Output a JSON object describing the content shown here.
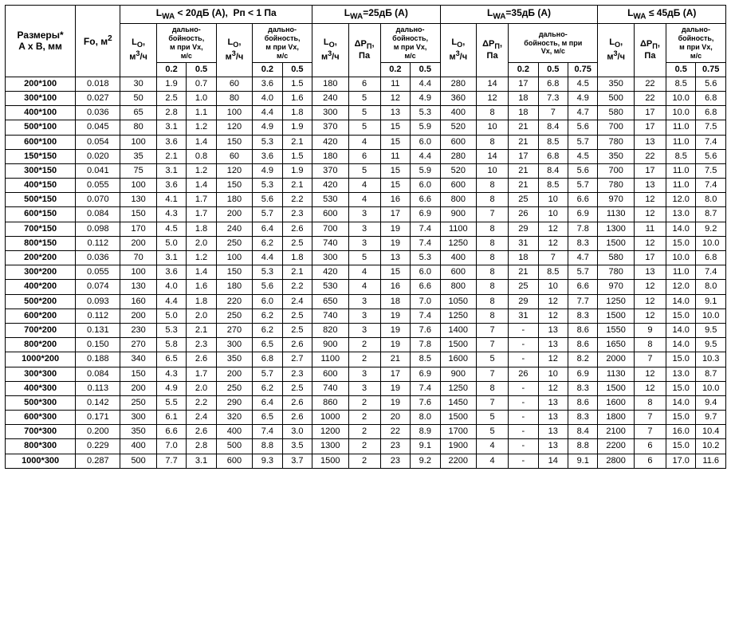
{
  "headers": {
    "dim": "Размеры*\nA x B, мм",
    "fo": "Fo, м<sup>2</sup>",
    "group_lt20": "L<sub>WA</sub> &lt; 20дБ (A),&nbsp;&nbsp;Pп &lt; 1 Па",
    "group_25": "L<sub>WA</sub>=25дБ (A)",
    "group_35": "L<sub>WA</sub>=35дБ (A)",
    "group_le45": "L<sub>WA</sub> ≤ 45дБ (A)",
    "lo": "L<sub>O</sub>,<br>м<sup>3</sup>/ч",
    "dp": "ΔP<sub>П</sub>,<br>Па",
    "range": "дально-<br>бойность,<br>м при Vx,<br>м/с",
    "range35": "дально-<br>бойность, м при<br>Vx, м/с",
    "v02": "0.2",
    "v05": "0.5",
    "v075": "0.75"
  },
  "rows": [
    {
      "dim": "200*100",
      "fo": "0.018",
      "a": {
        "lo": "30",
        "r02": "1.9",
        "r05": "0.7"
      },
      "b": {
        "lo": "60",
        "r02": "3.6",
        "r05": "1.5"
      },
      "c": {
        "lo": "180",
        "dp": "6",
        "r02": "11",
        "r05": "4.4"
      },
      "d": {
        "lo": "280",
        "dp": "14",
        "r02": "17",
        "r05": "6.8",
        "r075": "4.5"
      },
      "e": {
        "lo": "350",
        "dp": "22",
        "r05": "8.5",
        "r075": "5.6"
      }
    },
    {
      "dim": "300*100",
      "fo": "0.027",
      "a": {
        "lo": "50",
        "r02": "2.5",
        "r05": "1.0"
      },
      "b": {
        "lo": "80",
        "r02": "4.0",
        "r05": "1.6"
      },
      "c": {
        "lo": "240",
        "dp": "5",
        "r02": "12",
        "r05": "4.9"
      },
      "d": {
        "lo": "360",
        "dp": "12",
        "r02": "18",
        "r05": "7.3",
        "r075": "4.9"
      },
      "e": {
        "lo": "500",
        "dp": "22",
        "r05": "10.0",
        "r075": "6.8"
      }
    },
    {
      "dim": "400*100",
      "fo": "0.036",
      "a": {
        "lo": "65",
        "r02": "2.8",
        "r05": "1.1"
      },
      "b": {
        "lo": "100",
        "r02": "4.4",
        "r05": "1.8"
      },
      "c": {
        "lo": "300",
        "dp": "5",
        "r02": "13",
        "r05": "5.3"
      },
      "d": {
        "lo": "400",
        "dp": "8",
        "r02": "18",
        "r05": "7",
        "r075": "4.7"
      },
      "e": {
        "lo": "580",
        "dp": "17",
        "r05": "10.0",
        "r075": "6.8"
      }
    },
    {
      "dim": "500*100",
      "fo": "0.045",
      "a": {
        "lo": "80",
        "r02": "3.1",
        "r05": "1.2"
      },
      "b": {
        "lo": "120",
        "r02": "4.9",
        "r05": "1.9"
      },
      "c": {
        "lo": "370",
        "dp": "5",
        "r02": "15",
        "r05": "5.9"
      },
      "d": {
        "lo": "520",
        "dp": "10",
        "r02": "21",
        "r05": "8.4",
        "r075": "5.6"
      },
      "e": {
        "lo": "700",
        "dp": "17",
        "r05": "11.0",
        "r075": "7.5"
      }
    },
    {
      "dim": "600*100",
      "fo": "0.054",
      "a": {
        "lo": "100",
        "r02": "3.6",
        "r05": "1.4"
      },
      "b": {
        "lo": "150",
        "r02": "5.3",
        "r05": "2.1"
      },
      "c": {
        "lo": "420",
        "dp": "4",
        "r02": "15",
        "r05": "6.0"
      },
      "d": {
        "lo": "600",
        "dp": "8",
        "r02": "21",
        "r05": "8.5",
        "r075": "5.7"
      },
      "e": {
        "lo": "780",
        "dp": "13",
        "r05": "11.0",
        "r075": "7.4"
      }
    },
    {
      "dim": "150*150",
      "fo": "0.020",
      "a": {
        "lo": "35",
        "r02": "2.1",
        "r05": "0.8"
      },
      "b": {
        "lo": "60",
        "r02": "3.6",
        "r05": "1.5"
      },
      "c": {
        "lo": "180",
        "dp": "6",
        "r02": "11",
        "r05": "4.4"
      },
      "d": {
        "lo": "280",
        "dp": "14",
        "r02": "17",
        "r05": "6.8",
        "r075": "4.5"
      },
      "e": {
        "lo": "350",
        "dp": "22",
        "r05": "8.5",
        "r075": "5.6"
      }
    },
    {
      "dim": "300*150",
      "fo": "0.041",
      "a": {
        "lo": "75",
        "r02": "3.1",
        "r05": "1.2"
      },
      "b": {
        "lo": "120",
        "r02": "4.9",
        "r05": "1.9"
      },
      "c": {
        "lo": "370",
        "dp": "5",
        "r02": "15",
        "r05": "5.9"
      },
      "d": {
        "lo": "520",
        "dp": "10",
        "r02": "21",
        "r05": "8.4",
        "r075": "5.6"
      },
      "e": {
        "lo": "700",
        "dp": "17",
        "r05": "11.0",
        "r075": "7.5"
      }
    },
    {
      "dim": "400*150",
      "fo": "0.055",
      "a": {
        "lo": "100",
        "r02": "3.6",
        "r05": "1.4"
      },
      "b": {
        "lo": "150",
        "r02": "5.3",
        "r05": "2.1"
      },
      "c": {
        "lo": "420",
        "dp": "4",
        "r02": "15",
        "r05": "6.0"
      },
      "d": {
        "lo": "600",
        "dp": "8",
        "r02": "21",
        "r05": "8.5",
        "r075": "5.7"
      },
      "e": {
        "lo": "780",
        "dp": "13",
        "r05": "11.0",
        "r075": "7.4"
      }
    },
    {
      "dim": "500*150",
      "fo": "0.070",
      "a": {
        "lo": "130",
        "r02": "4.1",
        "r05": "1.7"
      },
      "b": {
        "lo": "180",
        "r02": "5.6",
        "r05": "2.2"
      },
      "c": {
        "lo": "530",
        "dp": "4",
        "r02": "16",
        "r05": "6.6"
      },
      "d": {
        "lo": "800",
        "dp": "8",
        "r02": "25",
        "r05": "10",
        "r075": "6.6"
      },
      "e": {
        "lo": "970",
        "dp": "12",
        "r05": "12.0",
        "r075": "8.0"
      }
    },
    {
      "dim": "600*150",
      "fo": "0.084",
      "a": {
        "lo": "150",
        "r02": "4.3",
        "r05": "1.7"
      },
      "b": {
        "lo": "200",
        "r02": "5.7",
        "r05": "2.3"
      },
      "c": {
        "lo": "600",
        "dp": "3",
        "r02": "17",
        "r05": "6.9"
      },
      "d": {
        "lo": "900",
        "dp": "7",
        "r02": "26",
        "r05": "10",
        "r075": "6.9"
      },
      "e": {
        "lo": "1130",
        "dp": "12",
        "r05": "13.0",
        "r075": "8.7"
      }
    },
    {
      "dim": "700*150",
      "fo": "0.098",
      "a": {
        "lo": "170",
        "r02": "4.5",
        "r05": "1.8"
      },
      "b": {
        "lo": "240",
        "r02": "6.4",
        "r05": "2.6"
      },
      "c": {
        "lo": "700",
        "dp": "3",
        "r02": "19",
        "r05": "7.4"
      },
      "d": {
        "lo": "1100",
        "dp": "8",
        "r02": "29",
        "r05": "12",
        "r075": "7.8"
      },
      "e": {
        "lo": "1300",
        "dp": "11",
        "r05": "14.0",
        "r075": "9.2"
      }
    },
    {
      "dim": "800*150",
      "fo": "0.112",
      "a": {
        "lo": "200",
        "r02": "5.0",
        "r05": "2.0"
      },
      "b": {
        "lo": "250",
        "r02": "6.2",
        "r05": "2.5"
      },
      "c": {
        "lo": "740",
        "dp": "3",
        "r02": "19",
        "r05": "7.4"
      },
      "d": {
        "lo": "1250",
        "dp": "8",
        "r02": "31",
        "r05": "12",
        "r075": "8.3"
      },
      "e": {
        "lo": "1500",
        "dp": "12",
        "r05": "15.0",
        "r075": "10.0"
      }
    },
    {
      "dim": "200*200",
      "fo": "0.036",
      "a": {
        "lo": "70",
        "r02": "3.1",
        "r05": "1.2"
      },
      "b": {
        "lo": "100",
        "r02": "4.4",
        "r05": "1.8"
      },
      "c": {
        "lo": "300",
        "dp": "5",
        "r02": "13",
        "r05": "5.3"
      },
      "d": {
        "lo": "400",
        "dp": "8",
        "r02": "18",
        "r05": "7",
        "r075": "4.7"
      },
      "e": {
        "lo": "580",
        "dp": "17",
        "r05": "10.0",
        "r075": "6.8"
      }
    },
    {
      "dim": "300*200",
      "fo": "0.055",
      "a": {
        "lo": "100",
        "r02": "3.6",
        "r05": "1.4"
      },
      "b": {
        "lo": "150",
        "r02": "5.3",
        "r05": "2.1"
      },
      "c": {
        "lo": "420",
        "dp": "4",
        "r02": "15",
        "r05": "6.0"
      },
      "d": {
        "lo": "600",
        "dp": "8",
        "r02": "21",
        "r05": "8.5",
        "r075": "5.7"
      },
      "e": {
        "lo": "780",
        "dp": "13",
        "r05": "11.0",
        "r075": "7.4"
      }
    },
    {
      "dim": "400*200",
      "fo": "0.074",
      "a": {
        "lo": "130",
        "r02": "4.0",
        "r05": "1.6"
      },
      "b": {
        "lo": "180",
        "r02": "5.6",
        "r05": "2.2"
      },
      "c": {
        "lo": "530",
        "dp": "4",
        "r02": "16",
        "r05": "6.6"
      },
      "d": {
        "lo": "800",
        "dp": "8",
        "r02": "25",
        "r05": "10",
        "r075": "6.6"
      },
      "e": {
        "lo": "970",
        "dp": "12",
        "r05": "12.0",
        "r075": "8.0"
      }
    },
    {
      "dim": "500*200",
      "fo": "0.093",
      "a": {
        "lo": "160",
        "r02": "4.4",
        "r05": "1.8"
      },
      "b": {
        "lo": "220",
        "r02": "6.0",
        "r05": "2.4"
      },
      "c": {
        "lo": "650",
        "dp": "3",
        "r02": "18",
        "r05": "7.0"
      },
      "d": {
        "lo": "1050",
        "dp": "8",
        "r02": "29",
        "r05": "12",
        "r075": "7.7"
      },
      "e": {
        "lo": "1250",
        "dp": "12",
        "r05": "14.0",
        "r075": "9.1"
      }
    },
    {
      "dim": "600*200",
      "fo": "0.112",
      "a": {
        "lo": "200",
        "r02": "5.0",
        "r05": "2.0"
      },
      "b": {
        "lo": "250",
        "r02": "6.2",
        "r05": "2.5"
      },
      "c": {
        "lo": "740",
        "dp": "3",
        "r02": "19",
        "r05": "7.4"
      },
      "d": {
        "lo": "1250",
        "dp": "8",
        "r02": "31",
        "r05": "12",
        "r075": "8.3"
      },
      "e": {
        "lo": "1500",
        "dp": "12",
        "r05": "15.0",
        "r075": "10.0"
      }
    },
    {
      "dim": "700*200",
      "fo": "0.131",
      "a": {
        "lo": "230",
        "r02": "5.3",
        "r05": "2.1"
      },
      "b": {
        "lo": "270",
        "r02": "6.2",
        "r05": "2.5"
      },
      "c": {
        "lo": "820",
        "dp": "3",
        "r02": "19",
        "r05": "7.6"
      },
      "d": {
        "lo": "1400",
        "dp": "7",
        "r02": "-",
        "r05": "13",
        "r075": "8.6"
      },
      "e": {
        "lo": "1550",
        "dp": "9",
        "r05": "14.0",
        "r075": "9.5"
      }
    },
    {
      "dim": "800*200",
      "fo": "0.150",
      "a": {
        "lo": "270",
        "r02": "5.8",
        "r05": "2.3"
      },
      "b": {
        "lo": "300",
        "r02": "6.5",
        "r05": "2.6"
      },
      "c": {
        "lo": "900",
        "dp": "2",
        "r02": "19",
        "r05": "7.8"
      },
      "d": {
        "lo": "1500",
        "dp": "7",
        "r02": "-",
        "r05": "13",
        "r075": "8.6"
      },
      "e": {
        "lo": "1650",
        "dp": "8",
        "r05": "14.0",
        "r075": "9.5"
      }
    },
    {
      "dim": "1000*200",
      "fo": "0.188",
      "a": {
        "lo": "340",
        "r02": "6.5",
        "r05": "2.6"
      },
      "b": {
        "lo": "350",
        "r02": "6.8",
        "r05": "2.7"
      },
      "c": {
        "lo": "1100",
        "dp": "2",
        "r02": "21",
        "r05": "8.5"
      },
      "d": {
        "lo": "1600",
        "dp": "5",
        "r02": "-",
        "r05": "12",
        "r075": "8.2"
      },
      "e": {
        "lo": "2000",
        "dp": "7",
        "r05": "15.0",
        "r075": "10.3"
      }
    },
    {
      "dim": "300*300",
      "fo": "0.084",
      "a": {
        "lo": "150",
        "r02": "4.3",
        "r05": "1.7"
      },
      "b": {
        "lo": "200",
        "r02": "5.7",
        "r05": "2.3"
      },
      "c": {
        "lo": "600",
        "dp": "3",
        "r02": "17",
        "r05": "6.9"
      },
      "d": {
        "lo": "900",
        "dp": "7",
        "r02": "26",
        "r05": "10",
        "r075": "6.9"
      },
      "e": {
        "lo": "1130",
        "dp": "12",
        "r05": "13.0",
        "r075": "8.7"
      }
    },
    {
      "dim": "400*300",
      "fo": "0.113",
      "a": {
        "lo": "200",
        "r02": "4.9",
        "r05": "2.0"
      },
      "b": {
        "lo": "250",
        "r02": "6.2",
        "r05": "2.5"
      },
      "c": {
        "lo": "740",
        "dp": "3",
        "r02": "19",
        "r05": "7.4"
      },
      "d": {
        "lo": "1250",
        "dp": "8",
        "r02": "-",
        "r05": "12",
        "r075": "8.3"
      },
      "e": {
        "lo": "1500",
        "dp": "12",
        "r05": "15.0",
        "r075": "10.0"
      }
    },
    {
      "dim": "500*300",
      "fo": "0.142",
      "a": {
        "lo": "250",
        "r02": "5.5",
        "r05": "2.2"
      },
      "b": {
        "lo": "290",
        "r02": "6.4",
        "r05": "2.6"
      },
      "c": {
        "lo": "860",
        "dp": "2",
        "r02": "19",
        "r05": "7.6"
      },
      "d": {
        "lo": "1450",
        "dp": "7",
        "r02": "-",
        "r05": "13",
        "r075": "8.6"
      },
      "e": {
        "lo": "1600",
        "dp": "8",
        "r05": "14.0",
        "r075": "9.4"
      }
    },
    {
      "dim": "600*300",
      "fo": "0.171",
      "a": {
        "lo": "300",
        "r02": "6.1",
        "r05": "2.4"
      },
      "b": {
        "lo": "320",
        "r02": "6.5",
        "r05": "2.6"
      },
      "c": {
        "lo": "1000",
        "dp": "2",
        "r02": "20",
        "r05": "8.0"
      },
      "d": {
        "lo": "1500",
        "dp": "5",
        "r02": "-",
        "r05": "13",
        "r075": "8.3"
      },
      "e": {
        "lo": "1800",
        "dp": "7",
        "r05": "15.0",
        "r075": "9.7"
      }
    },
    {
      "dim": "700*300",
      "fo": "0.200",
      "a": {
        "lo": "350",
        "r02": "6.6",
        "r05": "2.6"
      },
      "b": {
        "lo": "400",
        "r02": "7.4",
        "r05": "3.0"
      },
      "c": {
        "lo": "1200",
        "dp": "2",
        "r02": "22",
        "r05": "8.9"
      },
      "d": {
        "lo": "1700",
        "dp": "5",
        "r02": "-",
        "r05": "13",
        "r075": "8.4"
      },
      "e": {
        "lo": "2100",
        "dp": "7",
        "r05": "16.0",
        "r075": "10.4"
      }
    },
    {
      "dim": "800*300",
      "fo": "0.229",
      "a": {
        "lo": "400",
        "r02": "7.0",
        "r05": "2.8"
      },
      "b": {
        "lo": "500",
        "r02": "8.8",
        "r05": "3.5"
      },
      "c": {
        "lo": "1300",
        "dp": "2",
        "r02": "23",
        "r05": "9.1"
      },
      "d": {
        "lo": "1900",
        "dp": "4",
        "r02": "-",
        "r05": "13",
        "r075": "8.8"
      },
      "e": {
        "lo": "2200",
        "dp": "6",
        "r05": "15.0",
        "r075": "10.2"
      }
    },
    {
      "dim": "1000*300",
      "fo": "0.287",
      "a": {
        "lo": "500",
        "r02": "7.7",
        "r05": "3.1"
      },
      "b": {
        "lo": "600",
        "r02": "9.3",
        "r05": "3.7"
      },
      "c": {
        "lo": "1500",
        "dp": "2",
        "r02": "23",
        "r05": "9.2"
      },
      "d": {
        "lo": "2200",
        "dp": "4",
        "r02": "-",
        "r05": "14",
        "r075": "9.1"
      },
      "e": {
        "lo": "2800",
        "dp": "6",
        "r05": "17.0",
        "r075": "11.6"
      }
    }
  ]
}
